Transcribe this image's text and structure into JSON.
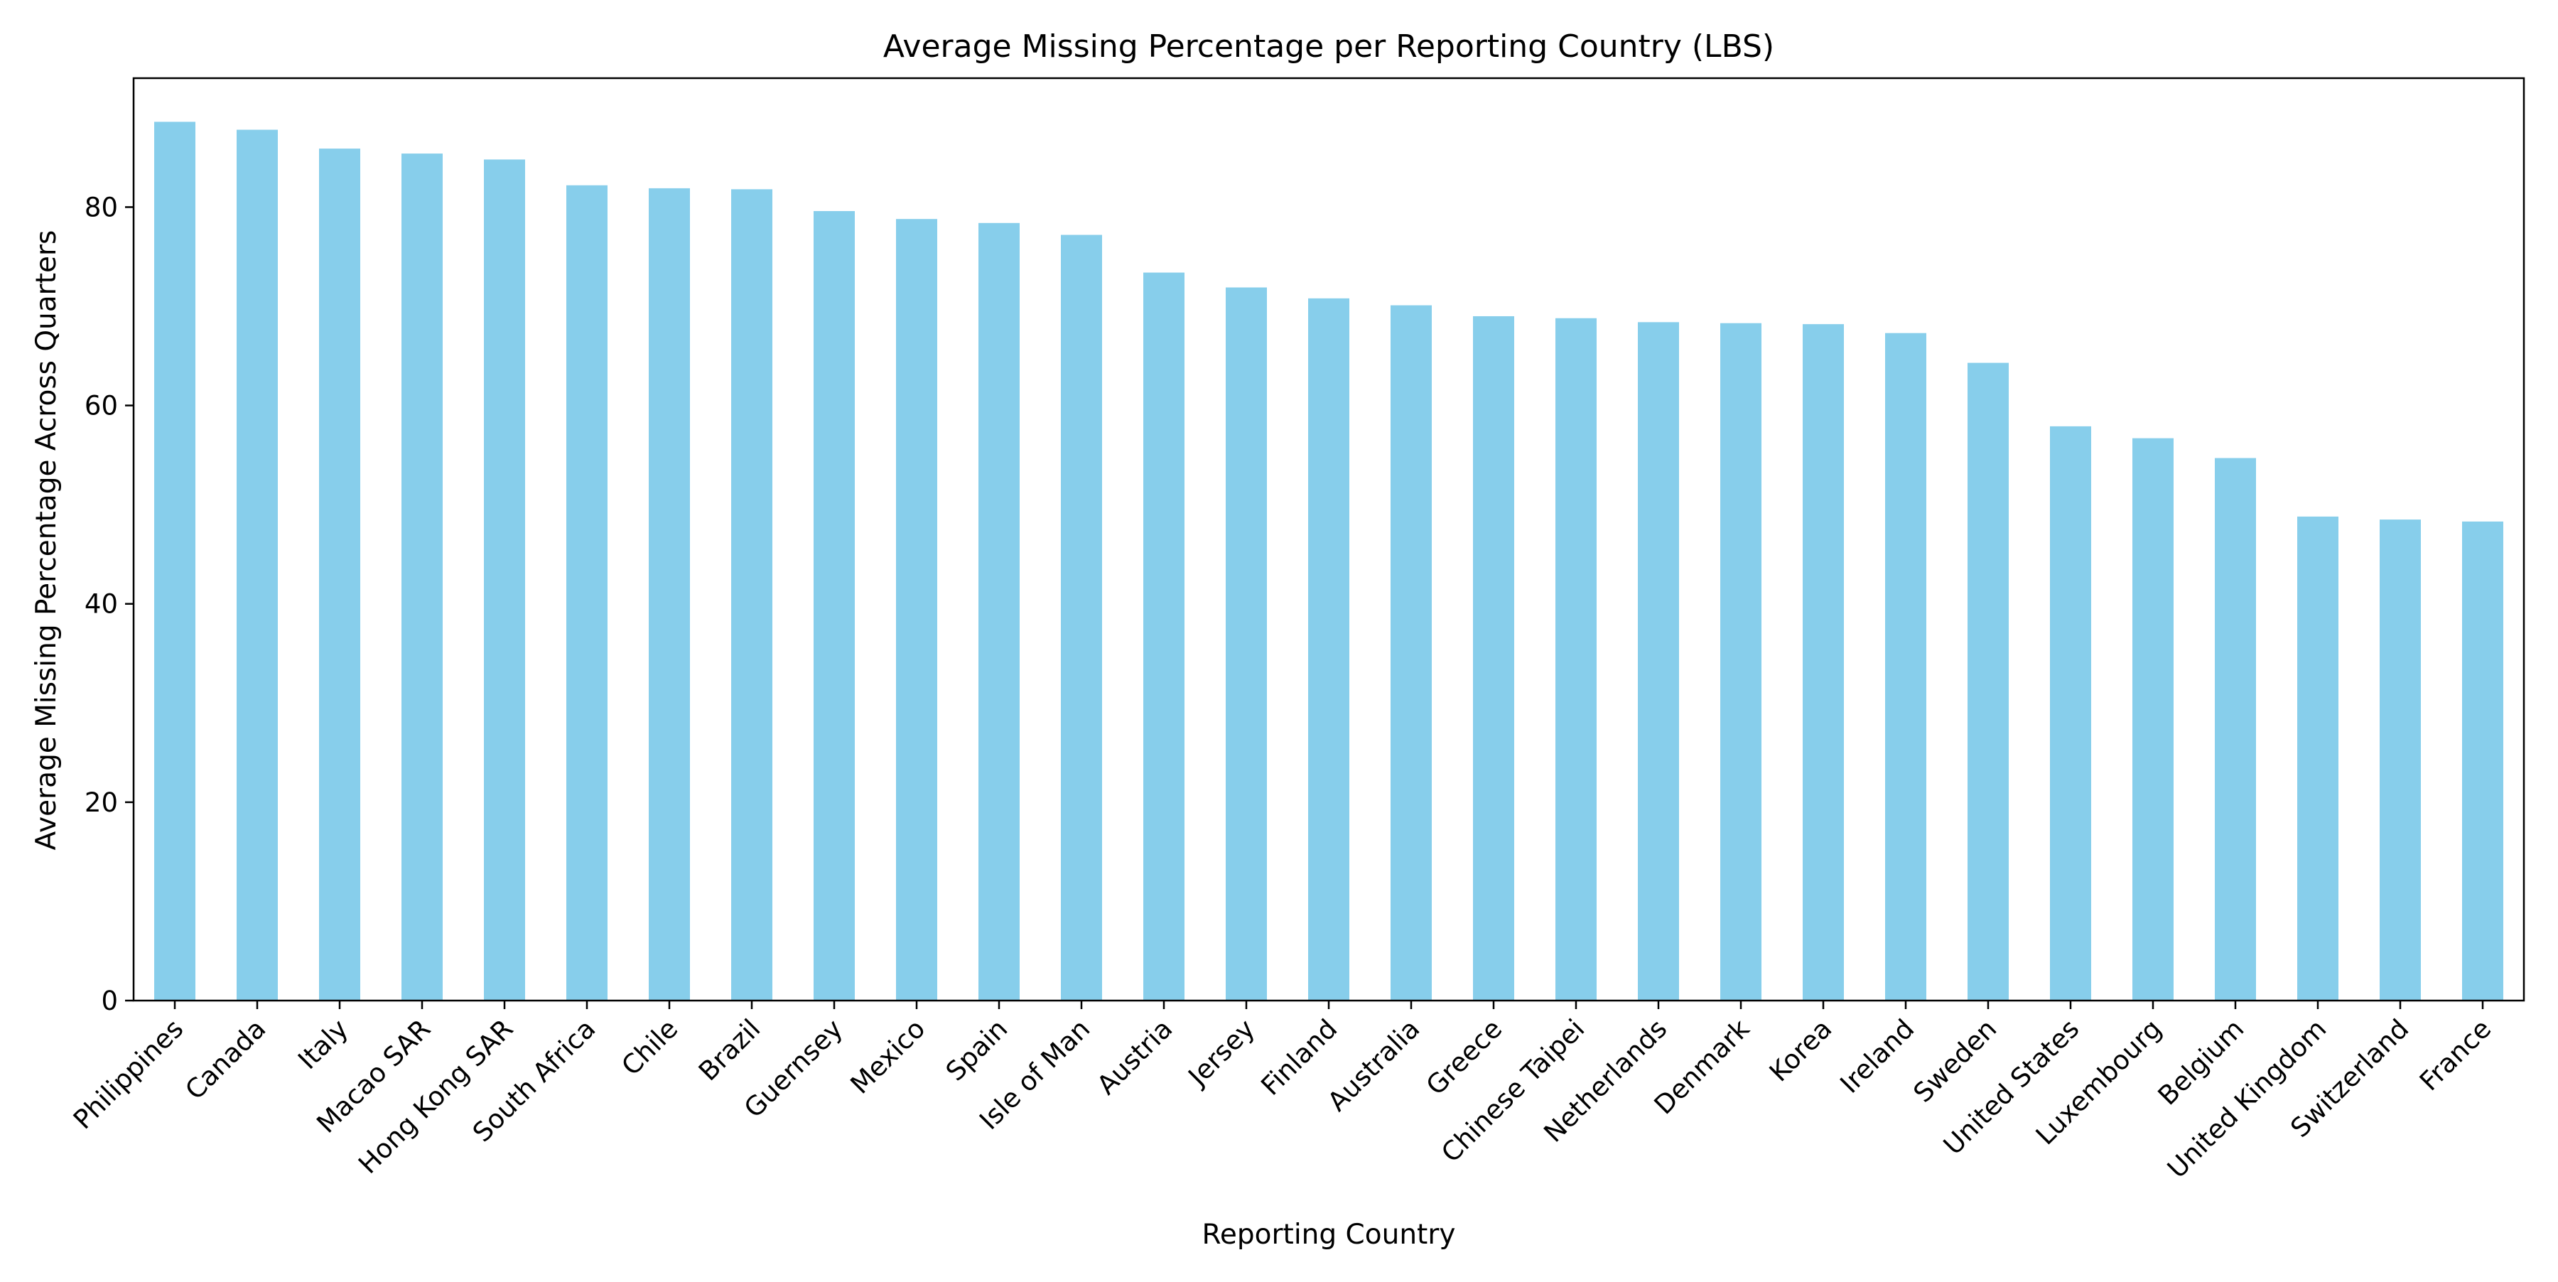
{
  "chart_data": {
    "type": "bar",
    "title": "Average Missing Percentage per Reporting Country (LBS)",
    "xlabel": "Reporting Country",
    "ylabel": "Average Missing Percentage Across Quarters",
    "categories": [
      "Philippines",
      "Canada",
      "Italy",
      "Macao SAR",
      "Hong Kong SAR",
      "South Africa",
      "Chile",
      "Brazil",
      "Guernsey",
      "Mexico",
      "Spain",
      "Isle of Man",
      "Austria",
      "Jersey",
      "Finland",
      "Australia",
      "Greece",
      "Chinese Taipei",
      "Netherlands",
      "Denmark",
      "Korea",
      "Ireland",
      "Sweden",
      "United States",
      "Luxembourg",
      "Belgium",
      "United Kingdom",
      "Switzerland",
      "France"
    ],
    "values": [
      88.6,
      87.8,
      85.9,
      85.4,
      84.8,
      82.2,
      81.9,
      81.8,
      79.6,
      78.8,
      78.4,
      77.2,
      73.4,
      71.9,
      70.8,
      70.1,
      69.0,
      68.8,
      68.4,
      68.3,
      68.2,
      67.3,
      64.3,
      57.9,
      56.7,
      54.7,
      48.8,
      48.5,
      48.3
    ],
    "ylim": [
      0,
      93
    ],
    "yticks": [
      0,
      20,
      40,
      60,
      80
    ],
    "bar_color": "#87ceeb",
    "grid": false,
    "legend": "none"
  }
}
